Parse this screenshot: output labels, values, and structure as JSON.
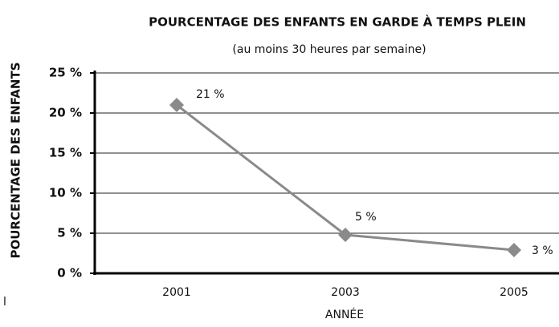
{
  "chart_data": {
    "type": "line",
    "title": "POURCENTAGE DES ENFANTS EN GARDE À TEMPS PLEIN",
    "subtitle": "(au moins 30 heures par semaine)",
    "y_label": "POURCENTAGE DES ENFANTS",
    "x_label": "ANNÉE",
    "annotation": "l",
    "categories": [
      "2001",
      "2003",
      "2005"
    ],
    "values": [
      21,
      4.8,
      2.9
    ],
    "value_labels": [
      "21 %",
      "5 %",
      "3 %"
    ],
    "color": "#8a8a8a",
    "ylim": [
      0,
      25
    ],
    "yticks": [
      {
        "value": 0,
        "label": "0 %"
      },
      {
        "value": 5,
        "label": "5 %"
      },
      {
        "value": 10,
        "label": "10 %"
      },
      {
        "value": 15,
        "label": "15 %"
      },
      {
        "value": 20,
        "label": "20 %"
      },
      {
        "value": 25,
        "label": "25 %"
      }
    ],
    "grid": true
  }
}
